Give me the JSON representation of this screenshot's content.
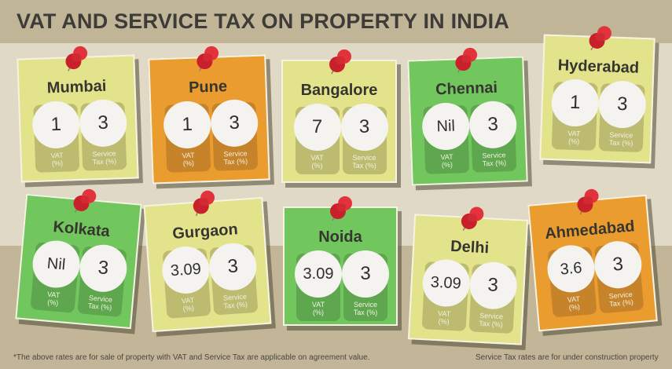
{
  "title": "VAT AND SERVICE TAX ON PROPERTY IN INDIA",
  "labels": {
    "vat_line1": "VAT",
    "vat_line2": "(%)",
    "st_line1": "Service",
    "st_line2": "Tax (%)"
  },
  "colors": {
    "header": "#c1b597",
    "wall": "#e0d9c5",
    "floor": "#c2b598",
    "yellow_note": "#e3e38c",
    "orange_note": "#ea9d2e",
    "green_note": "#72c65e",
    "pin": "#d62a33"
  },
  "cities": [
    {
      "name": "Mumbai",
      "vat": "1",
      "service_tax": "3",
      "color": "yellow"
    },
    {
      "name": "Pune",
      "vat": "1",
      "service_tax": "3",
      "color": "orange"
    },
    {
      "name": "Bangalore",
      "vat": "7",
      "service_tax": "3",
      "color": "yellow"
    },
    {
      "name": "Chennai",
      "vat": "Nil",
      "service_tax": "3",
      "color": "green"
    },
    {
      "name": "Hyderabad",
      "vat": "1",
      "service_tax": "3",
      "color": "yellow"
    },
    {
      "name": "Kolkata",
      "vat": "Nil",
      "service_tax": "3",
      "color": "green"
    },
    {
      "name": "Gurgaon",
      "vat": "3.09",
      "service_tax": "3",
      "color": "yellow"
    },
    {
      "name": "Noida",
      "vat": "3.09",
      "service_tax": "3",
      "color": "green"
    },
    {
      "name": "Delhi",
      "vat": "3.09",
      "service_tax": "3",
      "color": "yellow"
    },
    {
      "name": "Ahmedabad",
      "vat": "3.6",
      "service_tax": "3",
      "color": "orange"
    }
  ],
  "footnotes": {
    "left": "*The above rates are for sale of property with VAT and Service Tax are applicable on agreement value.",
    "right": "Service Tax rates are for under construction property"
  }
}
